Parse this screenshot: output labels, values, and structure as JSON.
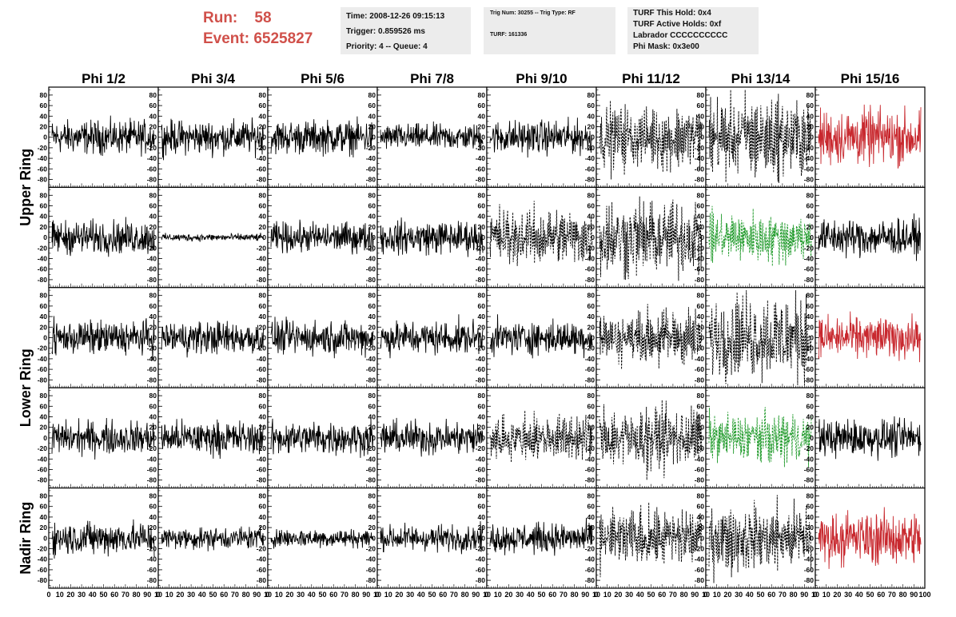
{
  "header": {
    "run_label": "Run:    58",
    "event_label": "Event: 6525827",
    "time_line": "Time: 2008-12-26 09:15:13",
    "trigger_line": "Trigger: 0.859526 ms",
    "priority_line": "Priority: 4 -- Queue: 4",
    "trig_line": "Trig Num: 30255 -- Trig Type: RF",
    "turf_line": "TURF: 161336",
    "turf_hold_line": "TURF This Hold: 0x4",
    "turf_active_line": "TURF Active Holds: 0xf",
    "labrador_line": "Labrador CCCCCCCCCC",
    "phi_mask_line": "Phi Mask: 0x3e00"
  },
  "colors": {
    "header_red": "#d0504a",
    "info_box_bg": "#ececec",
    "solid": "#000000",
    "dashed": "#000000",
    "red": "#c8282e",
    "green": "#1f9a2a"
  },
  "chart_data": {
    "type": "line",
    "columns": [
      "Phi 1/2",
      "Phi 3/4",
      "Phi 5/6",
      "Phi 7/8",
      "Phi 9/10",
      "Phi 11/12",
      "Phi 13/14",
      "Phi 15/16"
    ],
    "row_groups": [
      "Upper Ring",
      "Lower Ring",
      "Nadir Ring"
    ],
    "rows_per_group": [
      2,
      2,
      1
    ],
    "ylim": [
      -95,
      95
    ],
    "yticks": [
      80,
      60,
      40,
      20,
      0,
      -20,
      -40,
      -60,
      -80
    ],
    "xlim": [
      0,
      100
    ],
    "xticks_last_col": [
      "0",
      "10",
      "20",
      "30",
      "40",
      "50",
      "60",
      "70",
      "80",
      "90",
      "100"
    ],
    "xticks_other_cols": [
      "0",
      "10",
      "20",
      "30",
      "40",
      "50",
      "60",
      "70",
      "80",
      "90",
      "10"
    ],
    "panel_styles": [
      [
        "solid",
        "solid",
        "solid",
        "solid",
        "solid",
        "dashed",
        "dashed",
        "red"
      ],
      [
        "solid",
        "solid",
        "solid",
        "solid",
        "dashed",
        "dashed",
        "green",
        "solid"
      ],
      [
        "solid",
        "solid",
        "solid",
        "solid",
        "solid",
        "dashed",
        "dashed",
        "red"
      ],
      [
        "solid",
        "solid",
        "solid",
        "solid",
        "dashed",
        "dashed",
        "green",
        "solid"
      ],
      [
        "solid",
        "solid",
        "solid",
        "solid",
        "solid",
        "dashed",
        "dashed",
        "red"
      ]
    ],
    "panel_amplitudes": [
      [
        18,
        18,
        18,
        14,
        18,
        30,
        40,
        30
      ],
      [
        18,
        4,
        16,
        18,
        28,
        38,
        24,
        20
      ],
      [
        18,
        18,
        18,
        18,
        18,
        26,
        42,
        22
      ],
      [
        18,
        18,
        18,
        18,
        22,
        30,
        24,
        20
      ],
      [
        18,
        12,
        10,
        14,
        16,
        28,
        32,
        28
      ]
    ]
  }
}
